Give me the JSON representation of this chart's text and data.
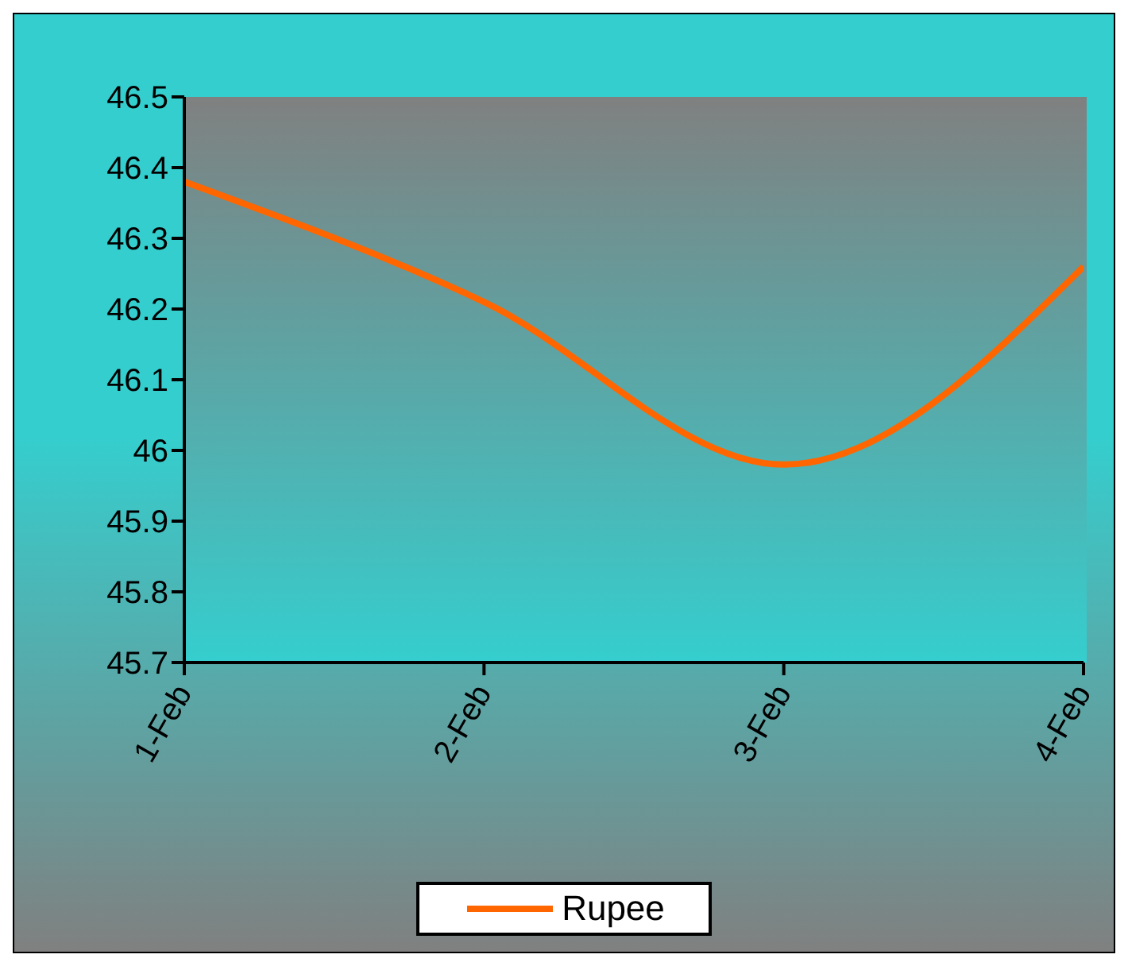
{
  "chart_data": {
    "type": "line",
    "categories": [
      "1-Feb",
      "2-Feb",
      "3-Feb",
      "4-Feb"
    ],
    "series": [
      {
        "name": "Rupee",
        "color": "#ff6600",
        "values": [
          46.38,
          46.21,
          45.98,
          46.26
        ]
      }
    ],
    "ylim": [
      45.7,
      46.5
    ],
    "yticks": [
      45.7,
      45.8,
      45.9,
      46,
      46.1,
      46.2,
      46.3,
      46.4,
      46.5
    ],
    "legend": "bottom",
    "marker": "none",
    "line_style": "solid"
  }
}
